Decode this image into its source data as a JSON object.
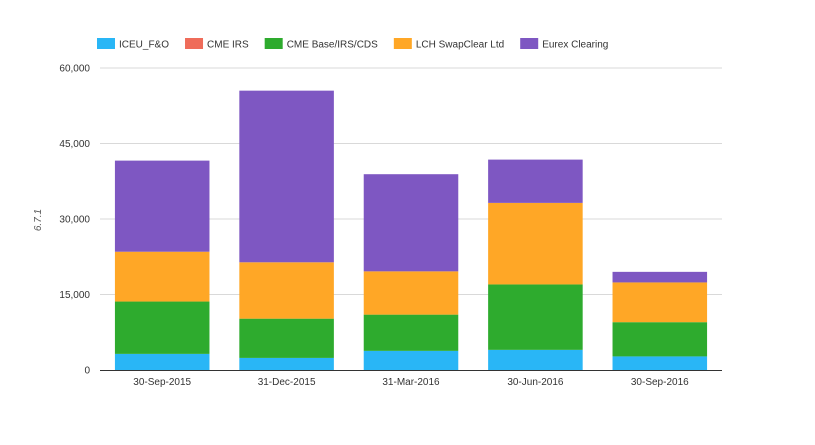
{
  "chart_data": {
    "type": "bar",
    "stacked": true,
    "categories": [
      "30-Sep-2015",
      "31-Dec-2015",
      "31-Mar-2016",
      "30-Jun-2016",
      "30-Sep-2016"
    ],
    "series": [
      {
        "name": "ICEU_F&O",
        "color": "#29b6f6",
        "values": [
          3200,
          2400,
          3800,
          4000,
          2700
        ]
      },
      {
        "name": "CME IRS",
        "color": "#ef6c5a",
        "values": [
          0,
          0,
          0,
          0,
          0
        ]
      },
      {
        "name": "CME Base/IRS/CDS",
        "color": "#2eab2e",
        "values": [
          10400,
          7800,
          7200,
          13000,
          6800
        ]
      },
      {
        "name": "LCH SwapClear Ltd",
        "color": "#ffa726",
        "values": [
          9900,
          11200,
          8600,
          16200,
          7900
        ]
      },
      {
        "name": "Eurex Clearing",
        "color": "#7e57c2",
        "values": [
          18100,
          34100,
          19300,
          8600,
          2100
        ]
      }
    ],
    "ylabel": "6.7.1",
    "ylim": [
      0,
      60000
    ],
    "yticks": [
      "0",
      "15,000",
      "30,000",
      "45,000",
      "60,000"
    ],
    "ytick_values": [
      0,
      15000,
      30000,
      45000,
      60000
    ],
    "grid": true,
    "legend": "top-left"
  }
}
